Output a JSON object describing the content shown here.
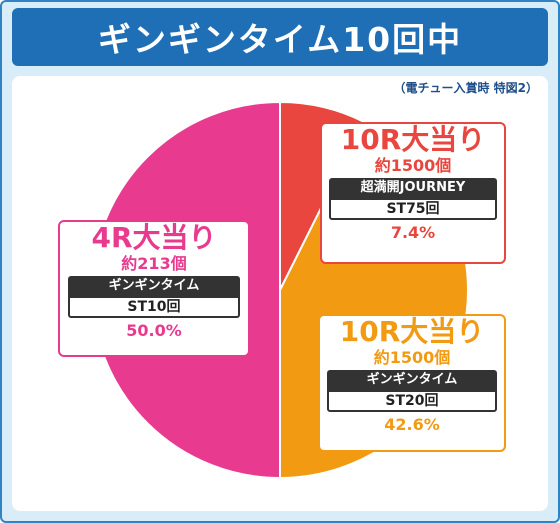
{
  "title": "ギンギンタイム10回中",
  "note": "（電チュー入賞時 特図2）",
  "colors": {
    "frame": "#2f84c6",
    "title_bg": "#1f6fb7",
    "pink": "#e83b8f",
    "red": "#e8463f",
    "orange": "#f29a12"
  },
  "chart_data": {
    "type": "pie",
    "slices": [
      {
        "label": "4R大当り",
        "count": "約213個",
        "kind": "ギンギンタイム",
        "st": "ST10回",
        "value": 50.0,
        "pct": "50.0%",
        "color": "#e83b8f"
      },
      {
        "label": "10R大当り",
        "count": "約1500個",
        "kind": "超満開JOURNEY",
        "st": "ST75回",
        "value": 7.4,
        "pct": "7.4%",
        "color": "#e8463f"
      },
      {
        "label": "10R大当り",
        "count": "約1500個",
        "kind": "ギンギンタイム",
        "st": "ST20回",
        "value": 42.6,
        "pct": "42.6%",
        "color": "#f29a12"
      }
    ]
  }
}
